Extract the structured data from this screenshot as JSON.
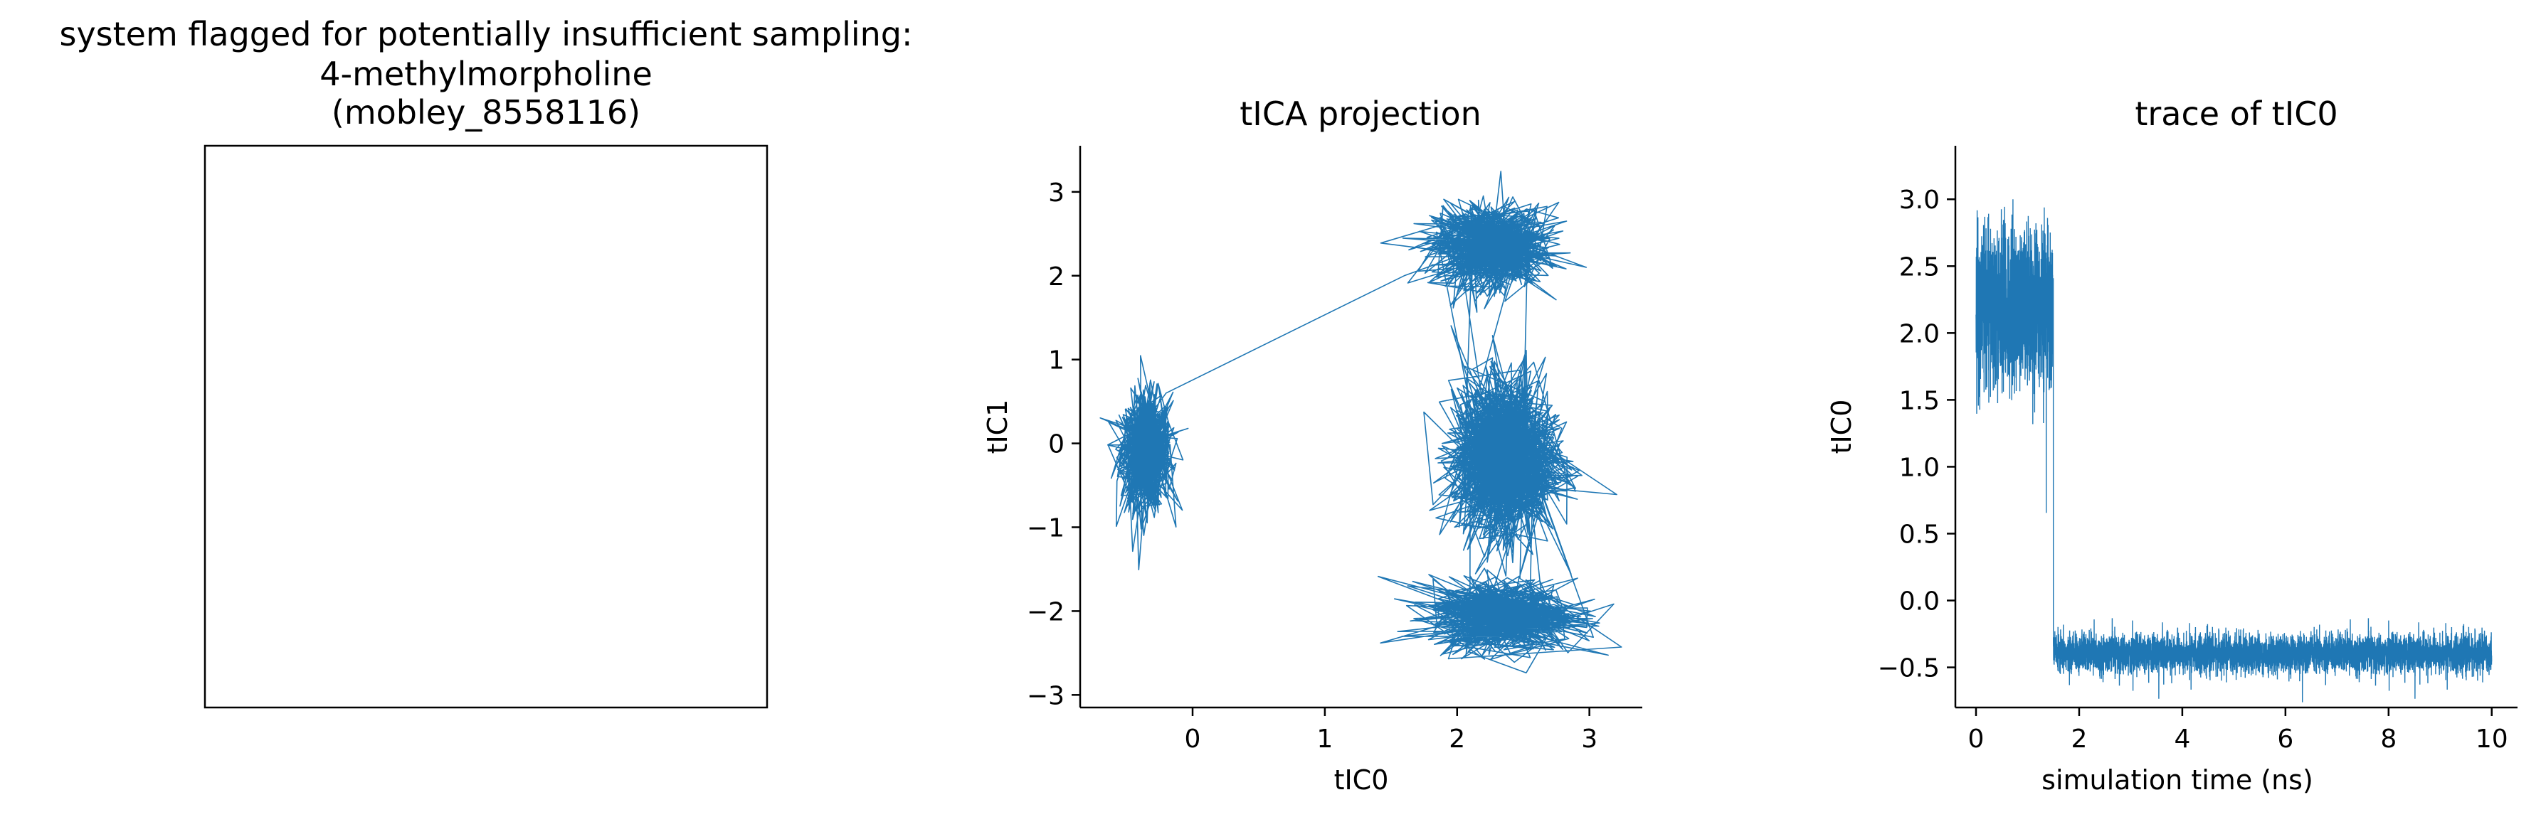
{
  "figure": {
    "title_lines": [
      "system flagged for potentially insufficient sampling:",
      "4-methylmorpholine",
      "(mobley_8558116)"
    ]
  },
  "chart_data": [
    {
      "type": "image",
      "panel": "molecule-structure",
      "title": "",
      "content": "blank"
    },
    {
      "type": "line",
      "panel": "tica-projection",
      "title": "tICA projection",
      "xlabel": "tIC0",
      "ylabel": "tIC1",
      "xlim": [
        -0.85,
        3.4
      ],
      "ylim": [
        -3.15,
        3.55
      ],
      "xticks": [
        0,
        1,
        2,
        3
      ],
      "yticks": [
        -3,
        -2,
        -1,
        0,
        1,
        2,
        3
      ],
      "color": "#1f77b4",
      "grid": false,
      "legend": "none",
      "clusters": [
        {
          "center": [
            -0.35,
            -0.1
          ],
          "spread": [
            0.1,
            0.35
          ]
        },
        {
          "center": [
            2.25,
            2.35
          ],
          "spread": [
            0.22,
            0.25
          ]
        },
        {
          "center": [
            2.35,
            -0.2
          ],
          "spread": [
            0.2,
            0.45
          ]
        },
        {
          "center": [
            2.35,
            -2.05
          ],
          "spread": [
            0.28,
            0.22
          ]
        }
      ],
      "transition_path": [
        [
          -0.2,
          0.6
        ],
        [
          1.6,
          2.0
        ]
      ]
    },
    {
      "type": "line",
      "panel": "tic0-trace",
      "title": "trace of tIC0",
      "xlabel": "simulation time (ns)",
      "ylabel": "tIC0",
      "xlim": [
        -0.4,
        10.5
      ],
      "ylim": [
        -0.8,
        3.4
      ],
      "xticks": [
        0,
        2,
        4,
        6,
        8,
        10
      ],
      "yticks": [
        -0.5,
        0.0,
        0.5,
        1.0,
        1.5,
        2.0,
        2.5,
        3.0
      ],
      "color": "#1f77b4",
      "grid": false,
      "legend": "none",
      "segments": [
        {
          "t_start": 0.0,
          "t_end": 1.5,
          "mean": 2.2,
          "noise": 0.3
        },
        {
          "t_start": 1.5,
          "t_end": 10.0,
          "mean": -0.4,
          "noise": 0.07
        }
      ]
    }
  ]
}
